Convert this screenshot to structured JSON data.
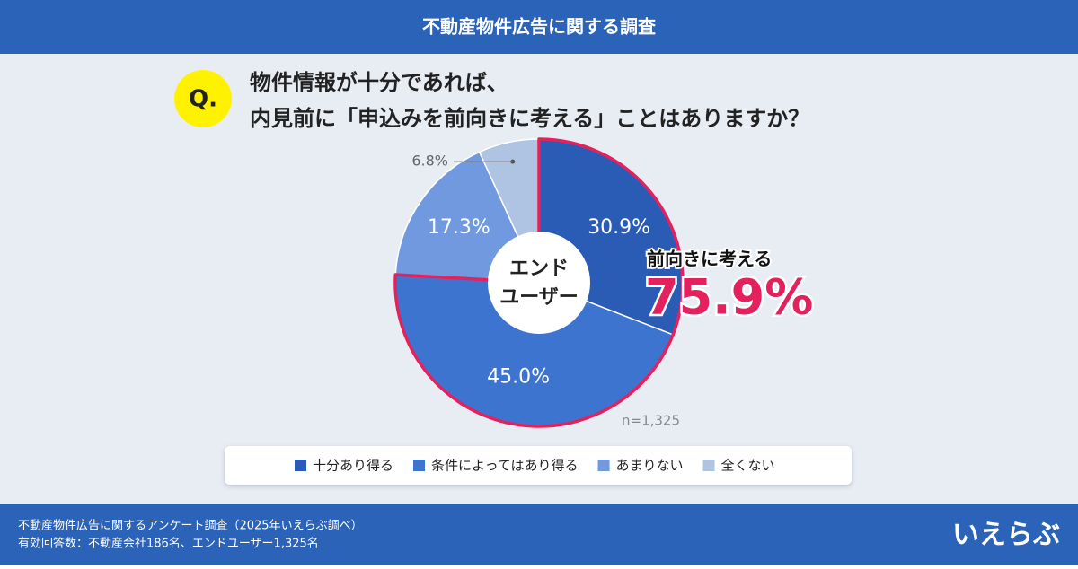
{
  "header": {
    "title": "不動産物件広告に関する調査"
  },
  "chart_data": {
    "type": "donut",
    "question_marker": "Q.",
    "question": [
      "物件情報が十分であれば、",
      "内見前に「申込みを前向きに考える」ことはありますか？"
    ],
    "center_label": [
      "エンド",
      "ユーザー"
    ],
    "categories": [
      "十分あり得る",
      "条件によってはあり得る",
      "あまりない",
      "全くない"
    ],
    "values": [
      30.9,
      45.0,
      17.3,
      6.8
    ],
    "value_labels": [
      "30.9%",
      "45.0%",
      "17.3%",
      "6.8%"
    ],
    "colors": [
      "#2a5cb6",
      "#3d74cf",
      "#7099df",
      "#afc3e2"
    ],
    "annotation": {
      "label": "前向きに考える",
      "value": "75.9%"
    },
    "note": "n=1,325"
  },
  "footer": {
    "lines": [
      "不動産物件広告に関するアンケート調査（2025年いえらぶ調べ）",
      "有効回答数：不動産会社186名、エンドユーザー1,325名"
    ],
    "logo": "いえらぶ"
  }
}
